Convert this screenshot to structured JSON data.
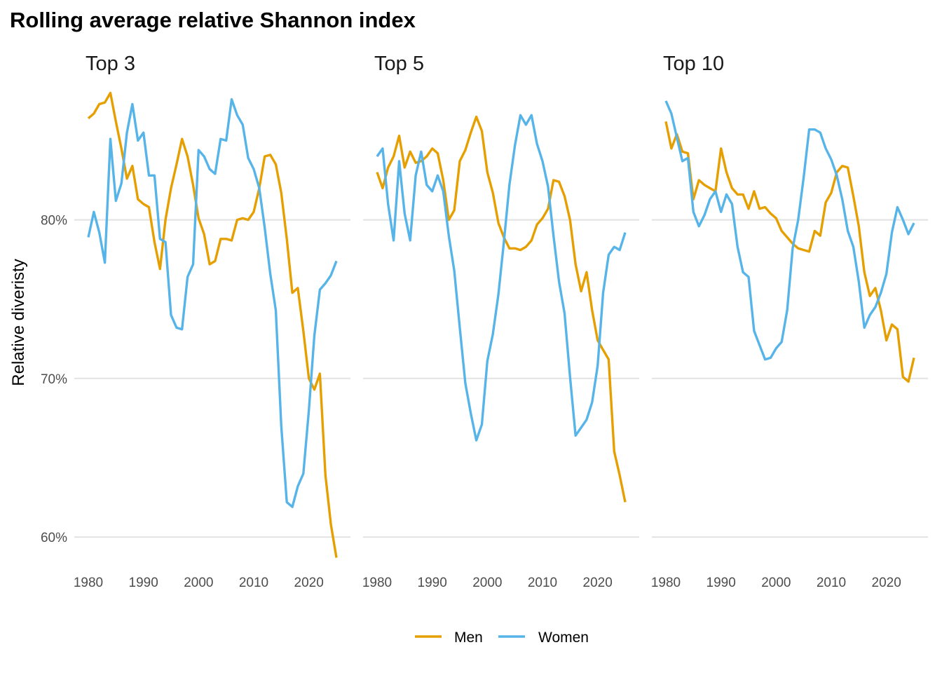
{
  "chart_data": {
    "type": "line",
    "title": "Rolling average relative Shannon index",
    "ylabel": "Relative diveristy",
    "xlabel": "",
    "xlim": [
      1980,
      2025
    ],
    "ylim": [
      0.585,
      0.89
    ],
    "x_ticks": [
      1980,
      1990,
      2000,
      2010,
      2020
    ],
    "x_tick_labels": [
      "1980",
      "1990",
      "2000",
      "2010",
      "2020"
    ],
    "y_ticks": [
      0.6,
      0.7,
      0.8
    ],
    "y_tick_labels": [
      "60%",
      "70%",
      "80%"
    ],
    "grid": true,
    "legend": {
      "position": "bottom",
      "entries": [
        {
          "name": "Men",
          "color": "#E69F00"
        },
        {
          "name": "Women",
          "color": "#56B4E9"
        }
      ]
    },
    "x": [
      1980,
      1981,
      1982,
      1983,
      1984,
      1985,
      1986,
      1987,
      1988,
      1989,
      1990,
      1991,
      1992,
      1993,
      1994,
      1995,
      1996,
      1997,
      1998,
      1999,
      2000,
      2001,
      2002,
      2003,
      2004,
      2005,
      2006,
      2007,
      2008,
      2009,
      2010,
      2011,
      2012,
      2013,
      2014,
      2015,
      2016,
      2017,
      2018,
      2019,
      2020,
      2021,
      2022,
      2023,
      2024,
      2025
    ],
    "panels": [
      {
        "title": "Top 3",
        "series": [
          {
            "name": "Men",
            "color": "#E69F00",
            "values": [
              0.864,
              0.867,
              0.873,
              0.874,
              0.88,
              0.862,
              0.845,
              0.826,
              0.834,
              0.813,
              0.81,
              0.808,
              0.786,
              0.769,
              0.8,
              0.82,
              0.835,
              0.851,
              0.84,
              0.822,
              0.801,
              0.791,
              0.772,
              0.774,
              0.788,
              0.788,
              0.787,
              0.8,
              0.801,
              0.8,
              0.805,
              0.82,
              0.84,
              0.841,
              0.835,
              0.817,
              0.788,
              0.754,
              0.757,
              0.73,
              0.7,
              0.693,
              0.703,
              0.639,
              0.608,
              0.587
            ]
          },
          {
            "name": "Women",
            "color": "#56B4E9",
            "values": [
              0.789,
              0.805,
              0.792,
              0.773,
              0.851,
              0.812,
              0.823,
              0.855,
              0.873,
              0.85,
              0.855,
              0.828,
              0.828,
              0.788,
              0.786,
              0.74,
              0.732,
              0.731,
              0.764,
              0.772,
              0.844,
              0.84,
              0.832,
              0.829,
              0.851,
              0.85,
              0.876,
              0.866,
              0.86,
              0.839,
              0.832,
              0.82,
              0.795,
              0.766,
              0.743,
              0.67,
              0.622,
              0.619,
              0.632,
              0.64,
              0.68,
              0.727,
              0.756,
              0.76,
              0.765,
              0.774
            ]
          }
        ]
      },
      {
        "title": "Top 5",
        "series": [
          {
            "name": "Men",
            "color": "#E69F00",
            "values": [
              0.83,
              0.82,
              0.833,
              0.84,
              0.853,
              0.833,
              0.843,
              0.836,
              0.837,
              0.84,
              0.845,
              0.842,
              0.825,
              0.8,
              0.806,
              0.837,
              0.844,
              0.855,
              0.865,
              0.856,
              0.83,
              0.817,
              0.798,
              0.789,
              0.782,
              0.782,
              0.781,
              0.783,
              0.787,
              0.797,
              0.801,
              0.807,
              0.825,
              0.824,
              0.815,
              0.8,
              0.772,
              0.755,
              0.767,
              0.743,
              0.724,
              0.718,
              0.712,
              0.654,
              0.639,
              0.622
            ]
          },
          {
            "name": "Women",
            "color": "#56B4E9",
            "values": [
              0.84,
              0.845,
              0.81,
              0.787,
              0.837,
              0.804,
              0.787,
              0.828,
              0.843,
              0.822,
              0.818,
              0.828,
              0.818,
              0.79,
              0.768,
              0.732,
              0.697,
              0.678,
              0.661,
              0.671,
              0.711,
              0.728,
              0.753,
              0.786,
              0.822,
              0.847,
              0.866,
              0.86,
              0.866,
              0.848,
              0.837,
              0.821,
              0.79,
              0.761,
              0.741,
              0.701,
              0.664,
              0.669,
              0.674,
              0.685,
              0.708,
              0.754,
              0.778,
              0.783,
              0.781,
              0.792
            ]
          }
        ]
      },
      {
        "title": "Top 10",
        "series": [
          {
            "name": "Men",
            "color": "#E69F00",
            "values": [
              0.862,
              0.845,
              0.854,
              0.843,
              0.842,
              0.813,
              0.825,
              0.822,
              0.82,
              0.818,
              0.845,
              0.83,
              0.82,
              0.816,
              0.816,
              0.807,
              0.818,
              0.807,
              0.808,
              0.804,
              0.801,
              0.793,
              0.789,
              0.785,
              0.782,
              0.781,
              0.78,
              0.793,
              0.79,
              0.811,
              0.817,
              0.83,
              0.834,
              0.833,
              0.815,
              0.796,
              0.767,
              0.752,
              0.757,
              0.743,
              0.724,
              0.734,
              0.731,
              0.701,
              0.698,
              0.713
            ]
          },
          {
            "name": "Women",
            "color": "#56B4E9",
            "values": [
              0.875,
              0.867,
              0.852,
              0.837,
              0.839,
              0.805,
              0.796,
              0.803,
              0.813,
              0.818,
              0.805,
              0.816,
              0.81,
              0.783,
              0.767,
              0.764,
              0.73,
              0.721,
              0.712,
              0.713,
              0.719,
              0.723,
              0.743,
              0.782,
              0.8,
              0.827,
              0.857,
              0.857,
              0.855,
              0.845,
              0.838,
              0.828,
              0.813,
              0.793,
              0.783,
              0.761,
              0.732,
              0.74,
              0.745,
              0.754,
              0.766,
              0.792,
              0.808,
              0.8,
              0.791,
              0.798
            ]
          }
        ]
      }
    ]
  }
}
